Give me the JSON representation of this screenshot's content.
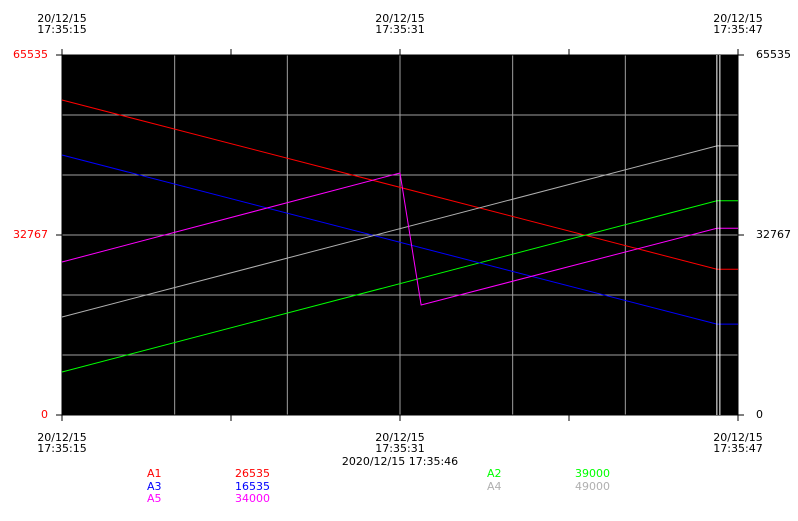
{
  "chart_data": {
    "type": "line",
    "xlim": [
      0,
      32
    ],
    "xticks": [
      {
        "value": 0,
        "label": "20/12/15\n17:35:15"
      },
      {
        "value": 16,
        "label": "20/12/15\n17:35:31"
      },
      {
        "value": 32,
        "label": "20/12/15\n17:35:47"
      }
    ],
    "ylim": [
      0,
      65535
    ],
    "yticks": [
      0,
      32767,
      65535
    ],
    "grid": true,
    "cursor": {
      "x": 31,
      "label": "2020/12/15 17:35:46"
    },
    "series": [
      {
        "name": "A1",
        "color": "#ff0000",
        "x": [
          0,
          31,
          32
        ],
        "values": [
          57343,
          26535,
          26535
        ]
      },
      {
        "name": "A2",
        "color": "#00ff00",
        "x": [
          0,
          31,
          32
        ],
        "values": [
          7828,
          39000,
          39000
        ]
      },
      {
        "name": "A3",
        "color": "#0000ff",
        "x": [
          0,
          31,
          32
        ],
        "values": [
          47330,
          16535,
          16535
        ]
      },
      {
        "name": "A4",
        "color": "#b0b0b0",
        "x": [
          0,
          31,
          32
        ],
        "values": [
          17840,
          49000,
          49000
        ]
      },
      {
        "name": "A5",
        "color": "#ff00ff",
        "x": [
          0,
          16,
          17,
          31,
          32
        ],
        "values": [
          27852,
          44053,
          20024,
          34000,
          34000
        ]
      }
    ]
  }
}
